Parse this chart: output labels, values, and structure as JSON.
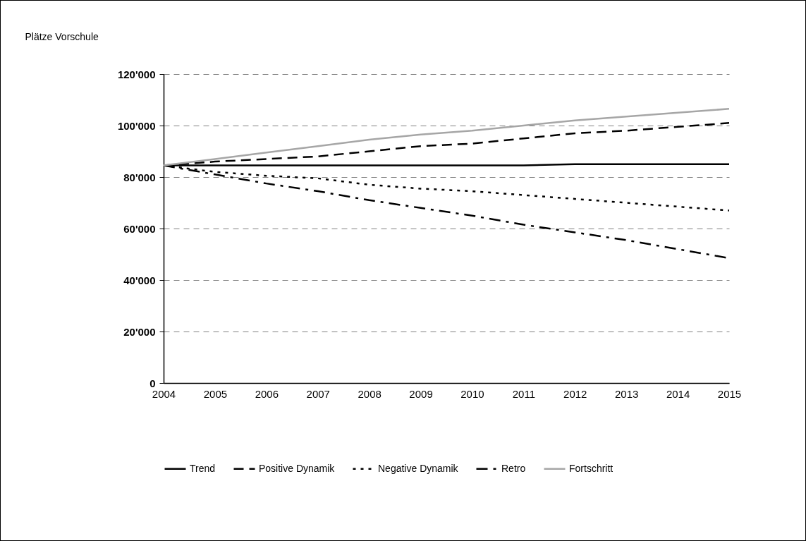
{
  "chart_data": {
    "type": "line",
    "ylabel": "Plätze Vorschule",
    "categories": [
      "2004",
      "2005",
      "2006",
      "2007",
      "2008",
      "2009",
      "2010",
      "2011",
      "2012",
      "2013",
      "2014",
      "2015"
    ],
    "series": [
      {
        "name": "Trend",
        "color": "#000000",
        "line_style": "solid",
        "values": [
          84500,
          84500,
          84500,
          84500,
          84500,
          84500,
          84500,
          84500,
          85000,
          85000,
          85000,
          85000
        ]
      },
      {
        "name": "Positive Dynamik",
        "color": "#000000",
        "line_style": "dashed",
        "values": [
          84500,
          86000,
          87000,
          88000,
          90000,
          92000,
          93000,
          95000,
          97000,
          98000,
          99500,
          101000
        ]
      },
      {
        "name": "Negative Dynamik",
        "color": "#000000",
        "line_style": "dotted",
        "values": [
          84500,
          82000,
          80500,
          79500,
          77000,
          75500,
          74500,
          73000,
          71500,
          70000,
          68500,
          67000
        ]
      },
      {
        "name": "Retro",
        "color": "#000000",
        "line_style": "dashdot",
        "values": [
          84500,
          81000,
          77500,
          74500,
          71000,
          68000,
          65000,
          61500,
          58500,
          55500,
          52000,
          48500
        ]
      },
      {
        "name": "Fortschritt",
        "color": "#a6a6a6",
        "line_style": "solid",
        "values": [
          84500,
          87000,
          89500,
          92000,
          94500,
          96500,
          98000,
          100000,
          102000,
          103500,
          105000,
          106500
        ]
      }
    ],
    "ylim": [
      0,
      120000
    ],
    "yticks": [
      {
        "value": 0,
        "label": "0"
      },
      {
        "value": 20000,
        "label": "20'000"
      },
      {
        "value": 40000,
        "label": "40'000"
      },
      {
        "value": 60000,
        "label": "60'000"
      },
      {
        "value": 80000,
        "label": "80'000"
      },
      {
        "value": 100000,
        "label": "100'000"
      },
      {
        "value": 120000,
        "label": "120'000"
      }
    ],
    "grid": "y",
    "legend": "bottom",
    "marker": "none"
  }
}
